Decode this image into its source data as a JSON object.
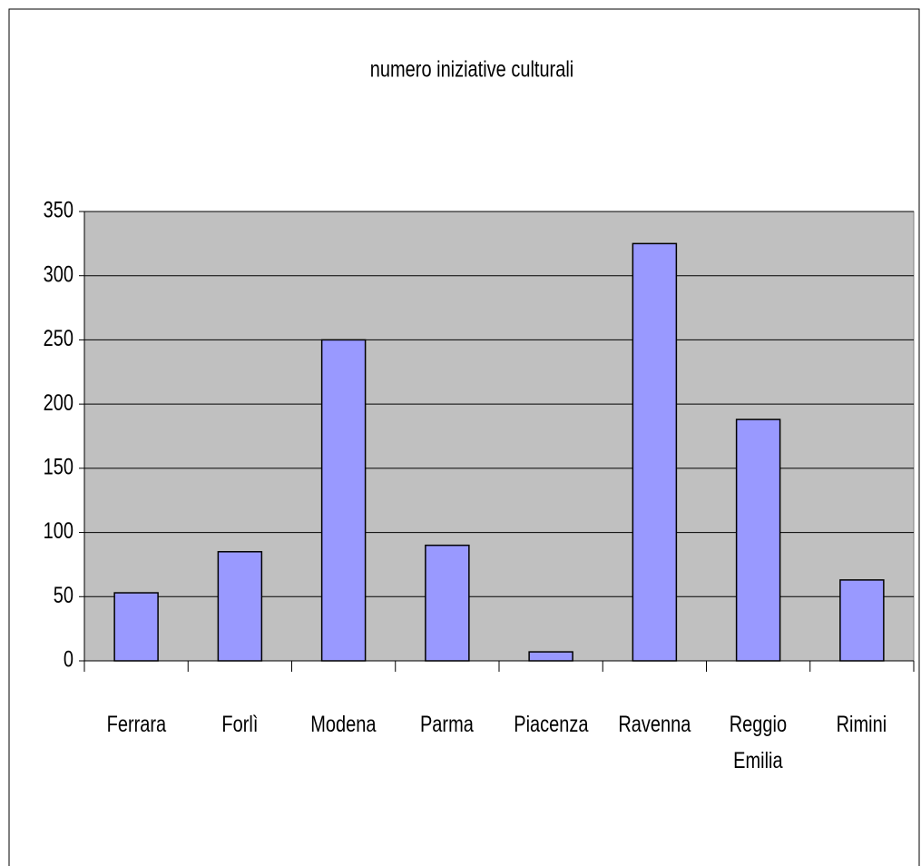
{
  "chart_data": {
    "type": "bar",
    "title": "numero iniziative culturali",
    "categories": [
      "Ferrara",
      "Forlì",
      "Modena",
      "Parma",
      "Piacenza",
      "Ravenna",
      "Reggio Emilia",
      "Rimini"
    ],
    "values": [
      53,
      85,
      250,
      90,
      7,
      325,
      188,
      63
    ],
    "color": "#9999ff",
    "ylim": [
      0,
      350
    ],
    "yticks": [
      0,
      50,
      100,
      150,
      200,
      250,
      300,
      350
    ],
    "grid": true
  }
}
